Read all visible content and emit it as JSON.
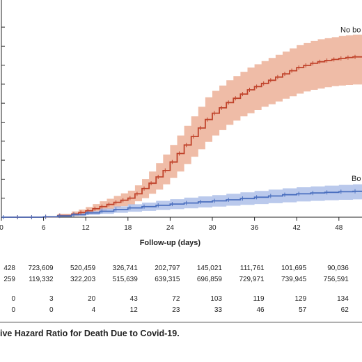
{
  "chart_data": {
    "type": "line",
    "title": "",
    "caption": "ive Hazard Ratio for Death Due to Covid-19.",
    "xlabel": "Follow-up (days)",
    "ylabel": "",
    "xlim": [
      0,
      50
    ],
    "ylim": [
      0,
      1
    ],
    "x_ticks": [
      0,
      6,
      12,
      18,
      24,
      30,
      36,
      42,
      48
    ],
    "grid": false,
    "series": [
      {
        "name": "No bo",
        "color": "#c0432b",
        "band_color": "#e9a68a",
        "x": [
          0,
          2,
          4,
          6,
          8,
          10,
          11,
          12,
          13,
          14,
          15,
          16,
          17,
          18,
          19,
          20,
          21,
          22,
          23,
          24,
          25,
          26,
          27,
          28,
          29,
          30,
          31,
          32,
          33,
          34,
          35,
          36,
          37,
          38,
          39,
          40,
          41,
          42,
          43,
          44,
          45,
          46,
          47,
          48,
          49,
          50
        ],
        "y": [
          0,
          0,
          0,
          0.002,
          0.008,
          0.015,
          0.022,
          0.03,
          0.04,
          0.05,
          0.06,
          0.07,
          0.08,
          0.09,
          0.11,
          0.135,
          0.16,
          0.19,
          0.22,
          0.26,
          0.3,
          0.34,
          0.38,
          0.42,
          0.46,
          0.49,
          0.515,
          0.54,
          0.56,
          0.58,
          0.6,
          0.615,
          0.63,
          0.645,
          0.66,
          0.675,
          0.69,
          0.705,
          0.715,
          0.725,
          0.732,
          0.738,
          0.743,
          0.748,
          0.752,
          0.755
        ],
        "lower": [
          0,
          0,
          0,
          0,
          0.002,
          0.006,
          0.01,
          0.015,
          0.022,
          0.03,
          0.038,
          0.045,
          0.052,
          0.06,
          0.075,
          0.09,
          0.11,
          0.13,
          0.155,
          0.185,
          0.215,
          0.25,
          0.285,
          0.32,
          0.355,
          0.385,
          0.41,
          0.435,
          0.455,
          0.475,
          0.49,
          0.505,
          0.52,
          0.532,
          0.545,
          0.558,
          0.57,
          0.582,
          0.592,
          0.6,
          0.606,
          0.612,
          0.617,
          0.62,
          0.623,
          0.625
        ],
        "upper": [
          0,
          0,
          0.002,
          0.006,
          0.016,
          0.027,
          0.036,
          0.048,
          0.062,
          0.075,
          0.087,
          0.1,
          0.112,
          0.125,
          0.15,
          0.18,
          0.215,
          0.255,
          0.295,
          0.34,
          0.385,
          0.43,
          0.475,
          0.52,
          0.565,
          0.595,
          0.62,
          0.645,
          0.665,
          0.685,
          0.705,
          0.72,
          0.735,
          0.75,
          0.765,
          0.78,
          0.795,
          0.81,
          0.82,
          0.83,
          0.838,
          0.843,
          0.848,
          0.853,
          0.857,
          0.86
        ]
      },
      {
        "name": "Bo",
        "color": "#4a6fbf",
        "band_color": "#a3b7e6",
        "x": [
          0,
          2,
          4,
          6,
          8,
          10,
          12,
          14,
          16,
          18,
          20,
          22,
          24,
          26,
          28,
          30,
          32,
          34,
          36,
          38,
          40,
          42,
          44,
          46,
          48,
          50
        ],
        "y": [
          0,
          0,
          0,
          0.002,
          0.006,
          0.012,
          0.02,
          0.028,
          0.036,
          0.044,
          0.05,
          0.056,
          0.062,
          0.067,
          0.072,
          0.077,
          0.082,
          0.088,
          0.094,
          0.1,
          0.106,
          0.11,
          0.114,
          0.117,
          0.12,
          0.122
        ],
        "lower": [
          0,
          0,
          0,
          0,
          0.002,
          0.006,
          0.011,
          0.016,
          0.021,
          0.026,
          0.03,
          0.034,
          0.038,
          0.042,
          0.046,
          0.05,
          0.054,
          0.058,
          0.062,
          0.066,
          0.07,
          0.074,
          0.077,
          0.08,
          0.082,
          0.084
        ],
        "upper": [
          0,
          0,
          0.001,
          0.005,
          0.011,
          0.019,
          0.03,
          0.041,
          0.051,
          0.061,
          0.069,
          0.077,
          0.085,
          0.092,
          0.098,
          0.104,
          0.11,
          0.117,
          0.124,
          0.13,
          0.136,
          0.141,
          0.145,
          0.149,
          0.152,
          0.155
        ]
      }
    ],
    "risk_table": {
      "x_positions": [
        0,
        6,
        12,
        18,
        24,
        30,
        36,
        42,
        48
      ],
      "at_risk_rows": [
        [
          "428",
          "723,609",
          "520,459",
          "326,741",
          "202,797",
          "145,021",
          "111,761",
          "101,695",
          "90,036"
        ],
        [
          "259",
          "119,332",
          "322,203",
          "515,639",
          "639,315",
          "696,859",
          "729,971",
          "739,945",
          "756,591"
        ]
      ],
      "event_rows": [
        [
          "0",
          "3",
          "20",
          "43",
          "72",
          "103",
          "119",
          "129",
          "134"
        ],
        [
          "0",
          "0",
          "4",
          "12",
          "23",
          "33",
          "46",
          "57",
          "62"
        ]
      ]
    }
  }
}
